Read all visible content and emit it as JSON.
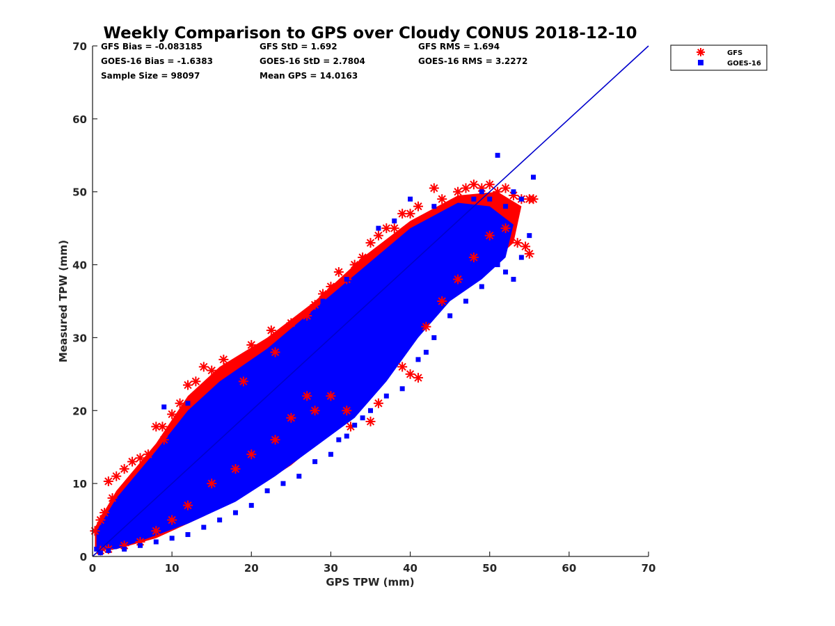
{
  "chart_data": {
    "type": "scatter",
    "title": "Weekly Comparison to GPS over Cloudy CONUS 2018-12-10",
    "xlabel": "GPS TPW (mm)",
    "ylabel": "Measured TPW (mm)",
    "xlim": [
      0,
      70
    ],
    "ylim": [
      0,
      70
    ],
    "xticks": [
      "0",
      "10",
      "20",
      "30",
      "40",
      "50",
      "60",
      "70"
    ],
    "yticks": [
      "0",
      "10",
      "20",
      "30",
      "40",
      "50",
      "60",
      "70"
    ],
    "grid": false,
    "legend_position": "outside-top-right",
    "colors": {
      "gfs": "#ff0000",
      "goes": "#0000ff",
      "line": "#0000cc",
      "axis": "#262626"
    },
    "stats": [
      [
        "GFS Bias = -0.083185",
        "GFS StD = 1.692",
        "GFS RMS = 1.694"
      ],
      [
        "GOES-16 Bias = -1.6383",
        "GOES-16 StD = 2.7804",
        "GOES-16 RMS = 3.2272"
      ],
      [
        "Sample Size = 98097",
        "Mean GPS = 14.0163",
        ""
      ]
    ],
    "reference_line": {
      "x": [
        0,
        70
      ],
      "y": [
        0,
        70
      ]
    },
    "series": [
      {
        "name": "GFS",
        "marker": "asterisk",
        "points": [
          [
            0.3,
            3.5
          ],
          [
            1,
            5
          ],
          [
            1.5,
            6
          ],
          [
            2,
            10.3
          ],
          [
            2.5,
            8
          ],
          [
            3,
            11
          ],
          [
            4,
            12
          ],
          [
            5,
            13
          ],
          [
            6,
            13.5
          ],
          [
            7,
            14
          ],
          [
            8,
            17.8
          ],
          [
            8.8,
            17.8
          ],
          [
            9,
            16
          ],
          [
            10,
            19.5
          ],
          [
            11,
            21
          ],
          [
            12,
            23.5
          ],
          [
            13,
            24
          ],
          [
            14,
            26
          ],
          [
            15,
            25.5
          ],
          [
            16.5,
            27
          ],
          [
            17,
            26
          ],
          [
            19,
            24
          ],
          [
            20,
            29
          ],
          [
            22.5,
            31
          ],
          [
            23,
            28
          ],
          [
            25,
            32
          ],
          [
            27,
            33
          ],
          [
            28,
            34.5
          ],
          [
            29,
            36
          ],
          [
            30,
            37
          ],
          [
            31,
            39
          ],
          [
            32,
            38
          ],
          [
            33,
            40
          ],
          [
            34,
            41
          ],
          [
            35,
            43
          ],
          [
            36,
            44
          ],
          [
            37,
            45
          ],
          [
            38,
            45
          ],
          [
            39,
            47
          ],
          [
            40,
            47
          ],
          [
            41,
            48
          ],
          [
            43,
            50.5
          ],
          [
            44,
            49
          ],
          [
            46,
            50
          ],
          [
            47,
            50.5
          ],
          [
            48,
            51
          ],
          [
            49,
            50.5
          ],
          [
            50,
            51
          ],
          [
            51,
            50
          ],
          [
            52,
            50.5
          ],
          [
            53,
            49.5
          ],
          [
            54,
            49
          ],
          [
            55,
            49
          ],
          [
            55.5,
            49
          ],
          [
            54.5,
            42.5
          ],
          [
            55,
            41.5
          ],
          [
            53.5,
            43
          ],
          [
            52,
            45
          ],
          [
            50,
            44
          ],
          [
            48,
            41
          ],
          [
            46,
            38
          ],
          [
            44,
            35
          ],
          [
            42,
            31.5
          ],
          [
            41,
            24.5
          ],
          [
            40,
            25
          ],
          [
            39,
            26
          ],
          [
            36,
            21
          ],
          [
            35,
            18.5
          ],
          [
            32.5,
            17.8
          ],
          [
            32,
            20
          ],
          [
            30,
            22
          ],
          [
            28,
            20
          ],
          [
            27,
            22
          ],
          [
            25,
            19
          ],
          [
            23,
            16
          ],
          [
            20,
            14
          ],
          [
            18,
            12
          ],
          [
            15,
            10
          ],
          [
            12,
            7
          ],
          [
            10,
            5
          ],
          [
            8,
            3.5
          ],
          [
            6,
            2
          ],
          [
            4,
            1.5
          ],
          [
            2,
            1
          ],
          [
            1,
            0.8
          ]
        ]
      },
      {
        "name": "GOES-16",
        "marker": "square",
        "points": [
          [
            0.5,
            1
          ],
          [
            1,
            2
          ],
          [
            2,
            3
          ],
          [
            3,
            4
          ],
          [
            4,
            5
          ],
          [
            5,
            6
          ],
          [
            6,
            7
          ],
          [
            7,
            8
          ],
          [
            8,
            9
          ],
          [
            9,
            10
          ],
          [
            10,
            12
          ],
          [
            11,
            13
          ],
          [
            12,
            14
          ],
          [
            13,
            15
          ],
          [
            14,
            16
          ],
          [
            15,
            17
          ],
          [
            16,
            18
          ],
          [
            17,
            19
          ],
          [
            18,
            20
          ],
          [
            19,
            21
          ],
          [
            20,
            22
          ],
          [
            21,
            23
          ],
          [
            22,
            24
          ],
          [
            23,
            25
          ],
          [
            24,
            26
          ],
          [
            25,
            27
          ],
          [
            26,
            28
          ],
          [
            27,
            29
          ],
          [
            28,
            30
          ],
          [
            29,
            31
          ],
          [
            30,
            32
          ],
          [
            31,
            33
          ],
          [
            32,
            34
          ],
          [
            33,
            35
          ],
          [
            34,
            36
          ],
          [
            35,
            37
          ],
          [
            36,
            38
          ],
          [
            37,
            39
          ],
          [
            38,
            40
          ],
          [
            39,
            41
          ],
          [
            40,
            42
          ],
          [
            41,
            43
          ],
          [
            42,
            44
          ],
          [
            43,
            45
          ],
          [
            44,
            46
          ],
          [
            45,
            47
          ],
          [
            46,
            48
          ],
          [
            47,
            48
          ],
          [
            48,
            49
          ],
          [
            49,
            50
          ],
          [
            50,
            49
          ],
          [
            51,
            55
          ],
          [
            52,
            48
          ],
          [
            53,
            50
          ],
          [
            54,
            49
          ],
          [
            55.5,
            52
          ],
          [
            55,
            44
          ],
          [
            54,
            41
          ],
          [
            53,
            38
          ],
          [
            52,
            39
          ],
          [
            51,
            40
          ],
          [
            49,
            37
          ],
          [
            47,
            35
          ],
          [
            45,
            33
          ],
          [
            43,
            30
          ],
          [
            42,
            28
          ],
          [
            41,
            27
          ],
          [
            39,
            23
          ],
          [
            37,
            22
          ],
          [
            35,
            20
          ],
          [
            34,
            19
          ],
          [
            33,
            18
          ],
          [
            32,
            16.5
          ],
          [
            31,
            16
          ],
          [
            30,
            14
          ],
          [
            28,
            13
          ],
          [
            26,
            11
          ],
          [
            24,
            10
          ],
          [
            22,
            9
          ],
          [
            20,
            7
          ],
          [
            18,
            6
          ],
          [
            16,
            5
          ],
          [
            14,
            4
          ],
          [
            12,
            3
          ],
          [
            10,
            2.5
          ],
          [
            8,
            2
          ],
          [
            6,
            1.5
          ],
          [
            4,
            1
          ],
          [
            2,
            0.8
          ],
          [
            1,
            0.5
          ],
          [
            9,
            20.5
          ],
          [
            12,
            21
          ],
          [
            15,
            22
          ],
          [
            17,
            23
          ],
          [
            19,
            25
          ],
          [
            24,
            29
          ],
          [
            27,
            31
          ],
          [
            29,
            35
          ],
          [
            32,
            38
          ],
          [
            36,
            45
          ],
          [
            38,
            46
          ],
          [
            40,
            49
          ],
          [
            43,
            48
          ],
          [
            46,
            46
          ],
          [
            48,
            44
          ],
          [
            50,
            42
          ]
        ]
      }
    ]
  }
}
